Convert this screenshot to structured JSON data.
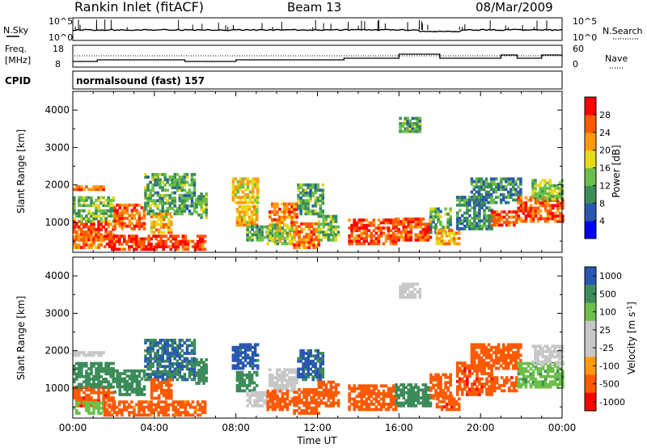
{
  "header": {
    "station": "Rankin Inlet (fitACF)",
    "beam": "Beam 13",
    "date": "08/Mar/2009"
  },
  "noise_panel": {
    "left_label": "N.Sky",
    "right_label": "N.Search",
    "left_ticks": [
      "10^5",
      "10^0"
    ],
    "right_ticks": [
      "10^5",
      "10^0"
    ]
  },
  "freq_panel": {
    "left_label_line1": "Freq.",
    "left_label_line2": "[MHz]",
    "right_label": "Nave",
    "left_ticks": [
      "18",
      "8"
    ],
    "right_ticks": [
      "60",
      "0"
    ]
  },
  "cpid_panel": {
    "label": "CPID",
    "value": "normalsound (fast) 157"
  },
  "colors": {
    "power_scale": [
      "#0000ff",
      "#2a58b0",
      "#3c8c5a",
      "#6cbf4a",
      "#e8d81a",
      "#ff9a10",
      "#ff5a00",
      "#ff0000"
    ],
    "velocity_scale": [
      "#ff0000",
      "#ff5a00",
      "#ff9a10",
      "#c8c8c8",
      "#c8c8c8",
      "#6cbf4a",
      "#3c8c5a",
      "#2a58b0"
    ]
  },
  "chart_data": [
    {
      "type": "heatmap",
      "name": "power",
      "ylabel": "Slant Range [km]",
      "xlabel": "",
      "x_ticks": [
        "00:00",
        "04:00",
        "08:00",
        "12:00",
        "16:00",
        "20:00",
        "00:00"
      ],
      "y_ticks": [
        "1000",
        "2000",
        "3000",
        "4000"
      ],
      "ylim": [
        200,
        4500
      ],
      "xlim_hours": [
        0,
        24
      ],
      "colorbar": {
        "label": "Power [dB]",
        "ticks": [
          "4",
          "8",
          "12",
          "16",
          "20",
          "24",
          "28"
        ],
        "range": [
          0,
          32
        ]
      },
      "regions": [
        {
          "t0": 0.0,
          "t1": 2.0,
          "r0": 500,
          "r1": 1000,
          "value": 27
        },
        {
          "t0": 0.0,
          "t1": 1.5,
          "r0": 300,
          "r1": 600,
          "value": 24
        },
        {
          "t0": 0.0,
          "t1": 2.0,
          "r0": 1000,
          "r1": 1700,
          "value": 14
        },
        {
          "t0": 0.0,
          "t1": 1.5,
          "r0": 1850,
          "r1": 1980,
          "value": 25
        },
        {
          "t0": 2.0,
          "t1": 3.5,
          "r0": 800,
          "r1": 1500,
          "value": 25
        },
        {
          "t0": 1.5,
          "t1": 6.5,
          "r0": 250,
          "r1": 650,
          "value": 28
        },
        {
          "t0": 3.5,
          "t1": 6.0,
          "r0": 1200,
          "r1": 2300,
          "value": 12
        },
        {
          "t0": 3.8,
          "t1": 4.8,
          "r0": 700,
          "r1": 1200,
          "value": 20
        },
        {
          "t0": 6.0,
          "t1": 6.5,
          "r0": 1100,
          "r1": 1800,
          "value": 14
        },
        {
          "t0": 7.8,
          "t1": 9.0,
          "r0": 1500,
          "r1": 2200,
          "value": 18
        },
        {
          "t0": 8.0,
          "t1": 9.0,
          "r0": 900,
          "r1": 1400,
          "value": 20
        },
        {
          "t0": 8.5,
          "t1": 10.0,
          "r0": 500,
          "r1": 900,
          "value": 12
        },
        {
          "t0": 9.6,
          "t1": 11.0,
          "r0": 900,
          "r1": 1500,
          "value": 24
        },
        {
          "t0": 9.5,
          "t1": 10.8,
          "r0": 400,
          "r1": 900,
          "value": 16
        },
        {
          "t0": 10.8,
          "t1": 12.0,
          "r0": 300,
          "r1": 1000,
          "value": 24
        },
        {
          "t0": 11.0,
          "t1": 12.2,
          "r0": 1200,
          "r1": 2000,
          "value": 12
        },
        {
          "t0": 12.0,
          "t1": 13.0,
          "r0": 500,
          "r1": 1200,
          "value": 14
        },
        {
          "t0": 13.5,
          "t1": 15.8,
          "r0": 400,
          "r1": 1100,
          "value": 27
        },
        {
          "t0": 15.8,
          "t1": 17.5,
          "r0": 500,
          "r1": 1100,
          "value": 26
        },
        {
          "t0": 17.5,
          "t1": 18.5,
          "r0": 700,
          "r1": 1400,
          "value": 12
        },
        {
          "t0": 17.8,
          "t1": 19.0,
          "r0": 400,
          "r1": 800,
          "value": 22
        },
        {
          "t0": 16.0,
          "t1": 17.0,
          "r0": 3400,
          "r1": 3800,
          "value": 12
        },
        {
          "t0": 18.8,
          "t1": 20.5,
          "r0": 800,
          "r1": 1700,
          "value": 10
        },
        {
          "t0": 19.5,
          "t1": 22.0,
          "r0": 1500,
          "r1": 2200,
          "value": 10
        },
        {
          "t0": 20.5,
          "t1": 21.8,
          "r0": 900,
          "r1": 1300,
          "value": 26
        },
        {
          "t0": 21.8,
          "t1": 24.0,
          "r0": 1000,
          "r1": 1700,
          "value": 26
        },
        {
          "t0": 22.5,
          "t1": 24.0,
          "r0": 1600,
          "r1": 2100,
          "value": 14
        }
      ]
    },
    {
      "type": "heatmap",
      "name": "velocity",
      "ylabel": "Slant Range [km]",
      "xlabel": "Time UT",
      "x_ticks": [
        "00:00",
        "04:00",
        "08:00",
        "12:00",
        "16:00",
        "20:00",
        "00:00"
      ],
      "y_ticks": [
        "1000",
        "2000",
        "3000",
        "4000"
      ],
      "ylim": [
        200,
        4500
      ],
      "xlim_hours": [
        0,
        24
      ],
      "colorbar": {
        "label": "Velocity [m s^-1]",
        "ticks": [
          "1000",
          "500",
          "100",
          "25",
          "-25",
          "-100",
          "-500",
          "-1000"
        ]
      },
      "regions": [
        {
          "t0": 0.0,
          "t1": 2.0,
          "r0": 500,
          "r1": 1000,
          "value": -400
        },
        {
          "t0": 0.0,
          "t1": 1.5,
          "r0": 300,
          "r1": 600,
          "value": 60
        },
        {
          "t0": 0.0,
          "t1": 2.0,
          "r0": 1000,
          "r1": 1700,
          "value": 300
        },
        {
          "t0": 0.0,
          "t1": 1.5,
          "r0": 1850,
          "r1": 1980,
          "value": 0
        },
        {
          "t0": 2.0,
          "t1": 3.5,
          "r0": 800,
          "r1": 1500,
          "value": 300
        },
        {
          "t0": 1.5,
          "t1": 6.5,
          "r0": 250,
          "r1": 650,
          "value": -150
        },
        {
          "t0": 3.5,
          "t1": 6.0,
          "r0": 1200,
          "r1": 2300,
          "value": 500
        },
        {
          "t0": 3.8,
          "t1": 4.8,
          "r0": 700,
          "r1": 1200,
          "value": -300
        },
        {
          "t0": 6.0,
          "t1": 6.5,
          "r0": 1100,
          "r1": 1800,
          "value": 300
        },
        {
          "t0": 7.8,
          "t1": 9.0,
          "r0": 1500,
          "r1": 2200,
          "value": 700
        },
        {
          "t0": 8.0,
          "t1": 9.0,
          "r0": 900,
          "r1": 1400,
          "value": 200
        },
        {
          "t0": 8.5,
          "t1": 10.0,
          "r0": 500,
          "r1": 900,
          "value": 0
        },
        {
          "t0": 9.6,
          "t1": 11.0,
          "r0": 900,
          "r1": 1500,
          "value": 0
        },
        {
          "t0": 9.5,
          "t1": 10.8,
          "r0": 400,
          "r1": 900,
          "value": -300
        },
        {
          "t0": 10.8,
          "t1": 12.0,
          "r0": 300,
          "r1": 1000,
          "value": -200
        },
        {
          "t0": 11.0,
          "t1": 12.2,
          "r0": 1200,
          "r1": 2000,
          "value": 600
        },
        {
          "t0": 12.0,
          "t1": 13.0,
          "r0": 500,
          "r1": 1200,
          "value": -200
        },
        {
          "t0": 13.5,
          "t1": 15.8,
          "r0": 400,
          "r1": 1100,
          "value": -300
        },
        {
          "t0": 15.8,
          "t1": 17.5,
          "r0": 500,
          "r1": 1100,
          "value": 300
        },
        {
          "t0": 17.5,
          "t1": 18.5,
          "r0": 700,
          "r1": 1400,
          "value": -300
        },
        {
          "t0": 17.8,
          "t1": 19.0,
          "r0": 400,
          "r1": 800,
          "value": -400
        },
        {
          "t0": 16.0,
          "t1": 17.0,
          "r0": 3400,
          "r1": 3800,
          "value": 0
        },
        {
          "t0": 18.8,
          "t1": 20.5,
          "r0": 800,
          "r1": 1700,
          "value": -400
        },
        {
          "t0": 19.5,
          "t1": 22.0,
          "r0": 1500,
          "r1": 2200,
          "value": -200
        },
        {
          "t0": 20.5,
          "t1": 21.8,
          "r0": 900,
          "r1": 1300,
          "value": -400
        },
        {
          "t0": 21.8,
          "t1": 24.0,
          "r0": 1000,
          "r1": 1700,
          "value": 80
        },
        {
          "t0": 22.5,
          "t1": 24.0,
          "r0": 1600,
          "r1": 2100,
          "value": 0
        }
      ]
    }
  ]
}
